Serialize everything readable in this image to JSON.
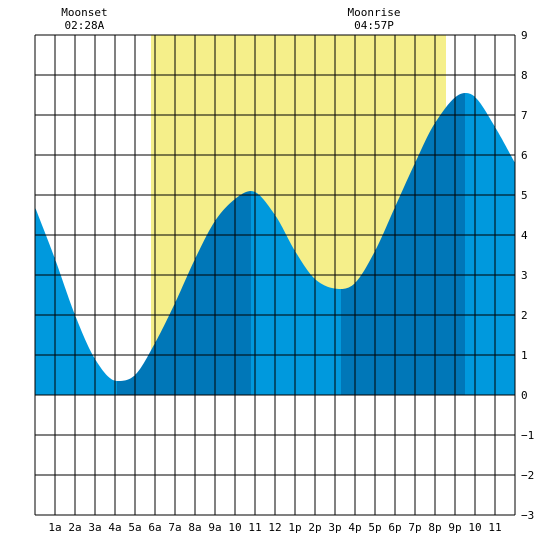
{
  "chart_data": {
    "type": "area",
    "title": "",
    "xlabel": "",
    "ylabel": "",
    "xlim": [
      0,
      24
    ],
    "ylim": [
      -3,
      9
    ],
    "y_ticks": [
      9,
      8,
      7,
      6,
      5,
      4,
      3,
      2,
      1,
      0,
      -1,
      -2,
      -3
    ],
    "y_tick_labels": [
      "9",
      "8",
      "7",
      "6",
      "5",
      "4",
      "3",
      "2",
      "1",
      "0",
      "−1",
      "−2",
      "−3"
    ],
    "x_ticks": [
      1,
      2,
      3,
      4,
      5,
      6,
      7,
      8,
      9,
      10,
      11,
      12,
      13,
      14,
      15,
      16,
      17,
      18,
      19,
      20,
      21,
      22,
      23
    ],
    "x_tick_labels": [
      "1a",
      "2a",
      "3a",
      "4a",
      "5a",
      "6a",
      "7a",
      "8a",
      "9a",
      "10",
      "11",
      "12",
      "1p",
      "2p",
      "3p",
      "4p",
      "5p",
      "6p",
      "7p",
      "8p",
      "9p",
      "10",
      "11"
    ],
    "grid": true,
    "daylight": {
      "start": 5.8,
      "end": 20.55,
      "color": "#f5ef8a"
    },
    "tide_extremes": [
      {
        "type": "low",
        "time": 4.1,
        "value": 0.35
      },
      {
        "type": "high",
        "time": 10.8,
        "value": 5.1
      },
      {
        "type": "low",
        "time": 15.3,
        "value": 2.65
      },
      {
        "type": "high",
        "time": 21.5,
        "value": 7.55
      }
    ],
    "series": [
      {
        "x": [
          0,
          1,
          2,
          3,
          4.1,
          5,
          6,
          7,
          8,
          9,
          10,
          10.8,
          12,
          13,
          14,
          15.3,
          16,
          17,
          18,
          19,
          20,
          21.5,
          22,
          23,
          24
        ],
        "y": [
          4.7,
          3.4,
          2.0,
          0.9,
          0.35,
          0.5,
          1.3,
          2.3,
          3.4,
          4.35,
          4.9,
          5.1,
          4.5,
          3.6,
          2.9,
          2.65,
          2.8,
          3.6,
          4.7,
          5.8,
          6.8,
          7.55,
          7.45,
          6.7,
          5.8
        ]
      }
    ],
    "colors": {
      "fill": "#0099dd",
      "fill_dark": "#0077b8",
      "grid": "#000000"
    },
    "annotations": [
      {
        "label": "Moonset",
        "time_text": "02:28A",
        "x": 2.47
      },
      {
        "label": "Moonrise",
        "time_text": "04:57P",
        "x": 16.95
      }
    ]
  }
}
